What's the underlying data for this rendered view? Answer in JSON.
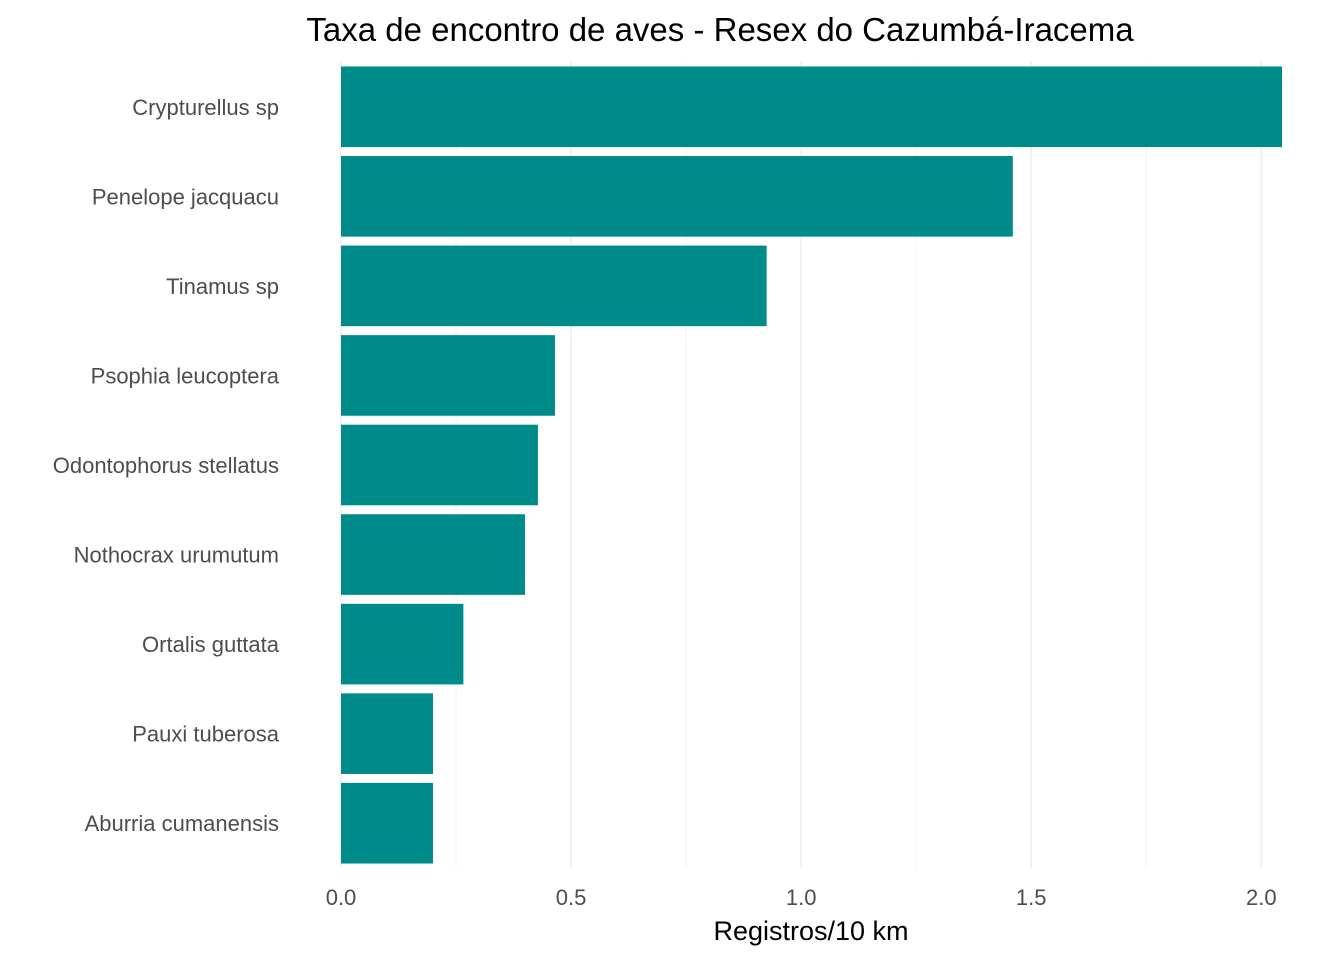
{
  "chart_data": {
    "type": "bar",
    "orientation": "horizontal",
    "title": "Taxa de encontro de aves - Resex do Cazumbá-Iracema",
    "xlabel": "Registros/10 km",
    "ylabel": "",
    "categories": [
      "Crypturellus sp",
      "Penelope jacquacu",
      "Tinamus sp",
      "Psophia leucoptera",
      "Odontophorus stellatus",
      "Nothocrax urumutum",
      "Ortalis guttata",
      "Pauxi tuberosa",
      "Aburria cumanensis"
    ],
    "values": [
      2.045,
      1.46,
      0.925,
      0.465,
      0.428,
      0.4,
      0.266,
      0.2,
      0.2
    ],
    "xlim": [
      0,
      2.045
    ],
    "xticks": [
      "0.0",
      "0.5",
      "1.0",
      "1.5",
      "2.0"
    ],
    "grid": true,
    "legend": "none",
    "bar_color": "#008B8B"
  }
}
